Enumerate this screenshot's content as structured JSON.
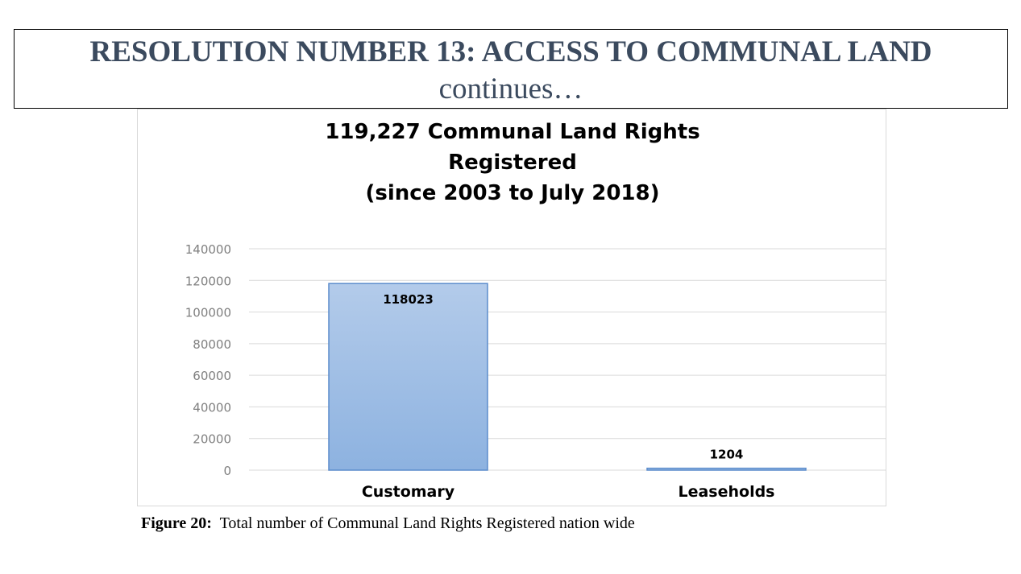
{
  "slide": {
    "title": "RESOLUTION NUMBER 13: ACCESS TO COMMUNAL LAND",
    "subtitle": "continues…"
  },
  "caption": {
    "label": "Figure 20:",
    "text": "Total number of Communal Land Rights Registered nation wide"
  },
  "colors": {
    "title_text": "#3b4a5e",
    "bar_top": "#b3cbea",
    "bar_bottom": "#8db2e0",
    "bar_border": "#5b8ccc",
    "gridline": "#d9d9d9",
    "tick_text": "#7f7f7f"
  },
  "chart_data": {
    "type": "bar",
    "title_lines": [
      "119,227 Communal Land Rights",
      "Registered",
      "(since 2003 to July 2018)"
    ],
    "categories": [
      "Customary",
      "Leaseholds"
    ],
    "values": [
      118023,
      1204
    ],
    "data_labels": [
      "118023",
      "1204"
    ],
    "ylim": [
      0,
      140000
    ],
    "yticks": [
      0,
      20000,
      40000,
      60000,
      80000,
      100000,
      120000,
      140000
    ],
    "xlabel": "",
    "ylabel": "",
    "grid": true,
    "legend": "none"
  }
}
